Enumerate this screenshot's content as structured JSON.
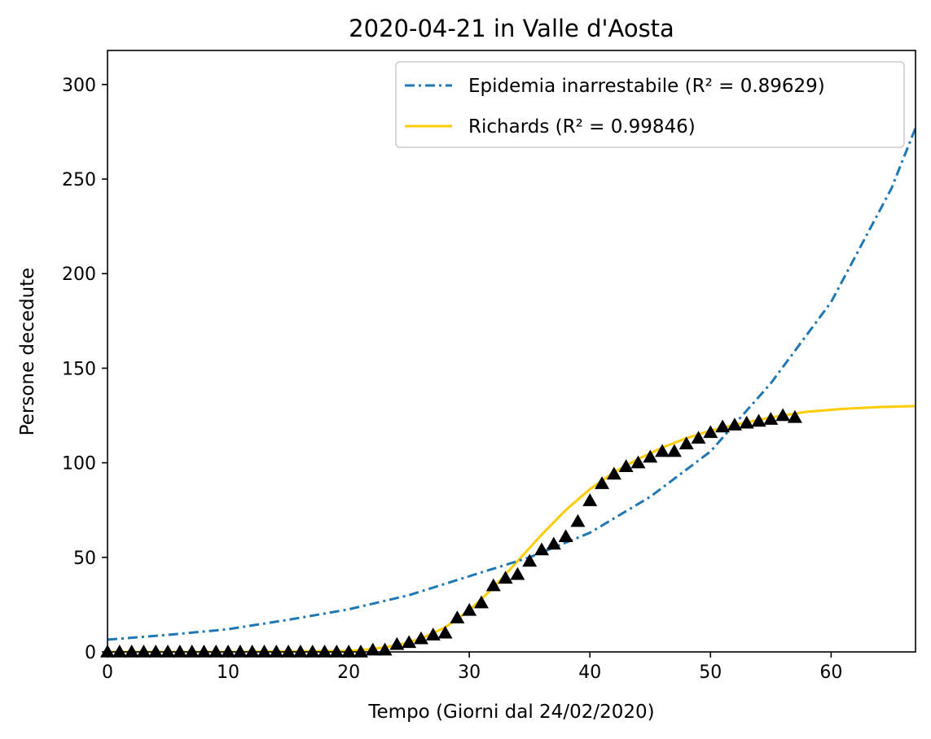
{
  "chart_data": {
    "type": "line",
    "title": "2020-04-21 in Valle d'Aosta",
    "xlabel": "Tempo (Giorni dal 24/02/2020)",
    "ylabel": "Persone decedute",
    "xlim": [
      0,
      67
    ],
    "ylim": [
      0,
      318
    ],
    "xticks": [
      0,
      10,
      20,
      30,
      40,
      50,
      60
    ],
    "yticks": [
      0,
      50,
      100,
      150,
      200,
      250,
      300
    ],
    "xtick_labels": [
      "0",
      "10",
      "20",
      "30",
      "40",
      "50",
      "60"
    ],
    "ytick_labels": [
      "0",
      "50",
      "100",
      "150",
      "200",
      "250",
      "300"
    ],
    "grid": false,
    "legend_position": "top-right",
    "series": [
      {
        "name": "Epidemia inarrestabile (R² = 0.89629)",
        "style": "dashdot",
        "color": "#1f77b4",
        "x": [
          0,
          5,
          10,
          15,
          20,
          25,
          30,
          35,
          40,
          45,
          50,
          55,
          60,
          65,
          67
        ],
        "values": [
          6.5,
          9.0,
          12.0,
          17.0,
          22.5,
          30.0,
          40.0,
          50.0,
          63.0,
          82.0,
          106.0,
          142.0,
          185.0,
          245.0,
          277.0
        ]
      },
      {
        "name": "Richards (R² = 0.99846)",
        "style": "solid",
        "color": "#ffcc00",
        "x": [
          0,
          10,
          20,
          22,
          24,
          26,
          28,
          30,
          32,
          34,
          36,
          38,
          40,
          42,
          44,
          46,
          48,
          50,
          52,
          55,
          58,
          61,
          64,
          67
        ],
        "values": [
          0,
          0,
          0.5,
          1.5,
          3.5,
          7.0,
          13.0,
          22.0,
          34.0,
          48.0,
          62.0,
          75.0,
          86.0,
          95.0,
          102.0,
          108.0,
          113.0,
          117.0,
          120.0,
          124.0,
          127.0,
          128.5,
          129.5,
          130.0
        ]
      }
    ],
    "observed": {
      "marker": "triangle",
      "color": "#000000",
      "x": [
        0,
        1,
        2,
        3,
        4,
        5,
        6,
        7,
        8,
        9,
        10,
        11,
        12,
        13,
        14,
        15,
        16,
        17,
        18,
        19,
        20,
        21,
        22,
        23,
        24,
        25,
        26,
        27,
        28,
        29,
        30,
        31,
        32,
        33,
        34,
        35,
        36,
        37,
        38,
        39,
        40,
        41,
        42,
        43,
        44,
        45,
        46,
        47,
        48,
        49,
        50,
        51,
        52,
        53,
        54,
        55,
        56,
        57
      ],
      "values": [
        0,
        0,
        0,
        0,
        0,
        0,
        0,
        0,
        0,
        0,
        0,
        0,
        0,
        0,
        0,
        0,
        0,
        0,
        0,
        0,
        0,
        0,
        1,
        1,
        4,
        5,
        7,
        9,
        10,
        18,
        22,
        26,
        35,
        39,
        41,
        48,
        54,
        57,
        61,
        69,
        80,
        89,
        94,
        98,
        100,
        103,
        106,
        106,
        110,
        113,
        116,
        119,
        120,
        121,
        122,
        123,
        125,
        124
      ]
    },
    "colors": {
      "axes": "#000000",
      "background": "#ffffff",
      "legend_border": "#cccccc"
    }
  }
}
